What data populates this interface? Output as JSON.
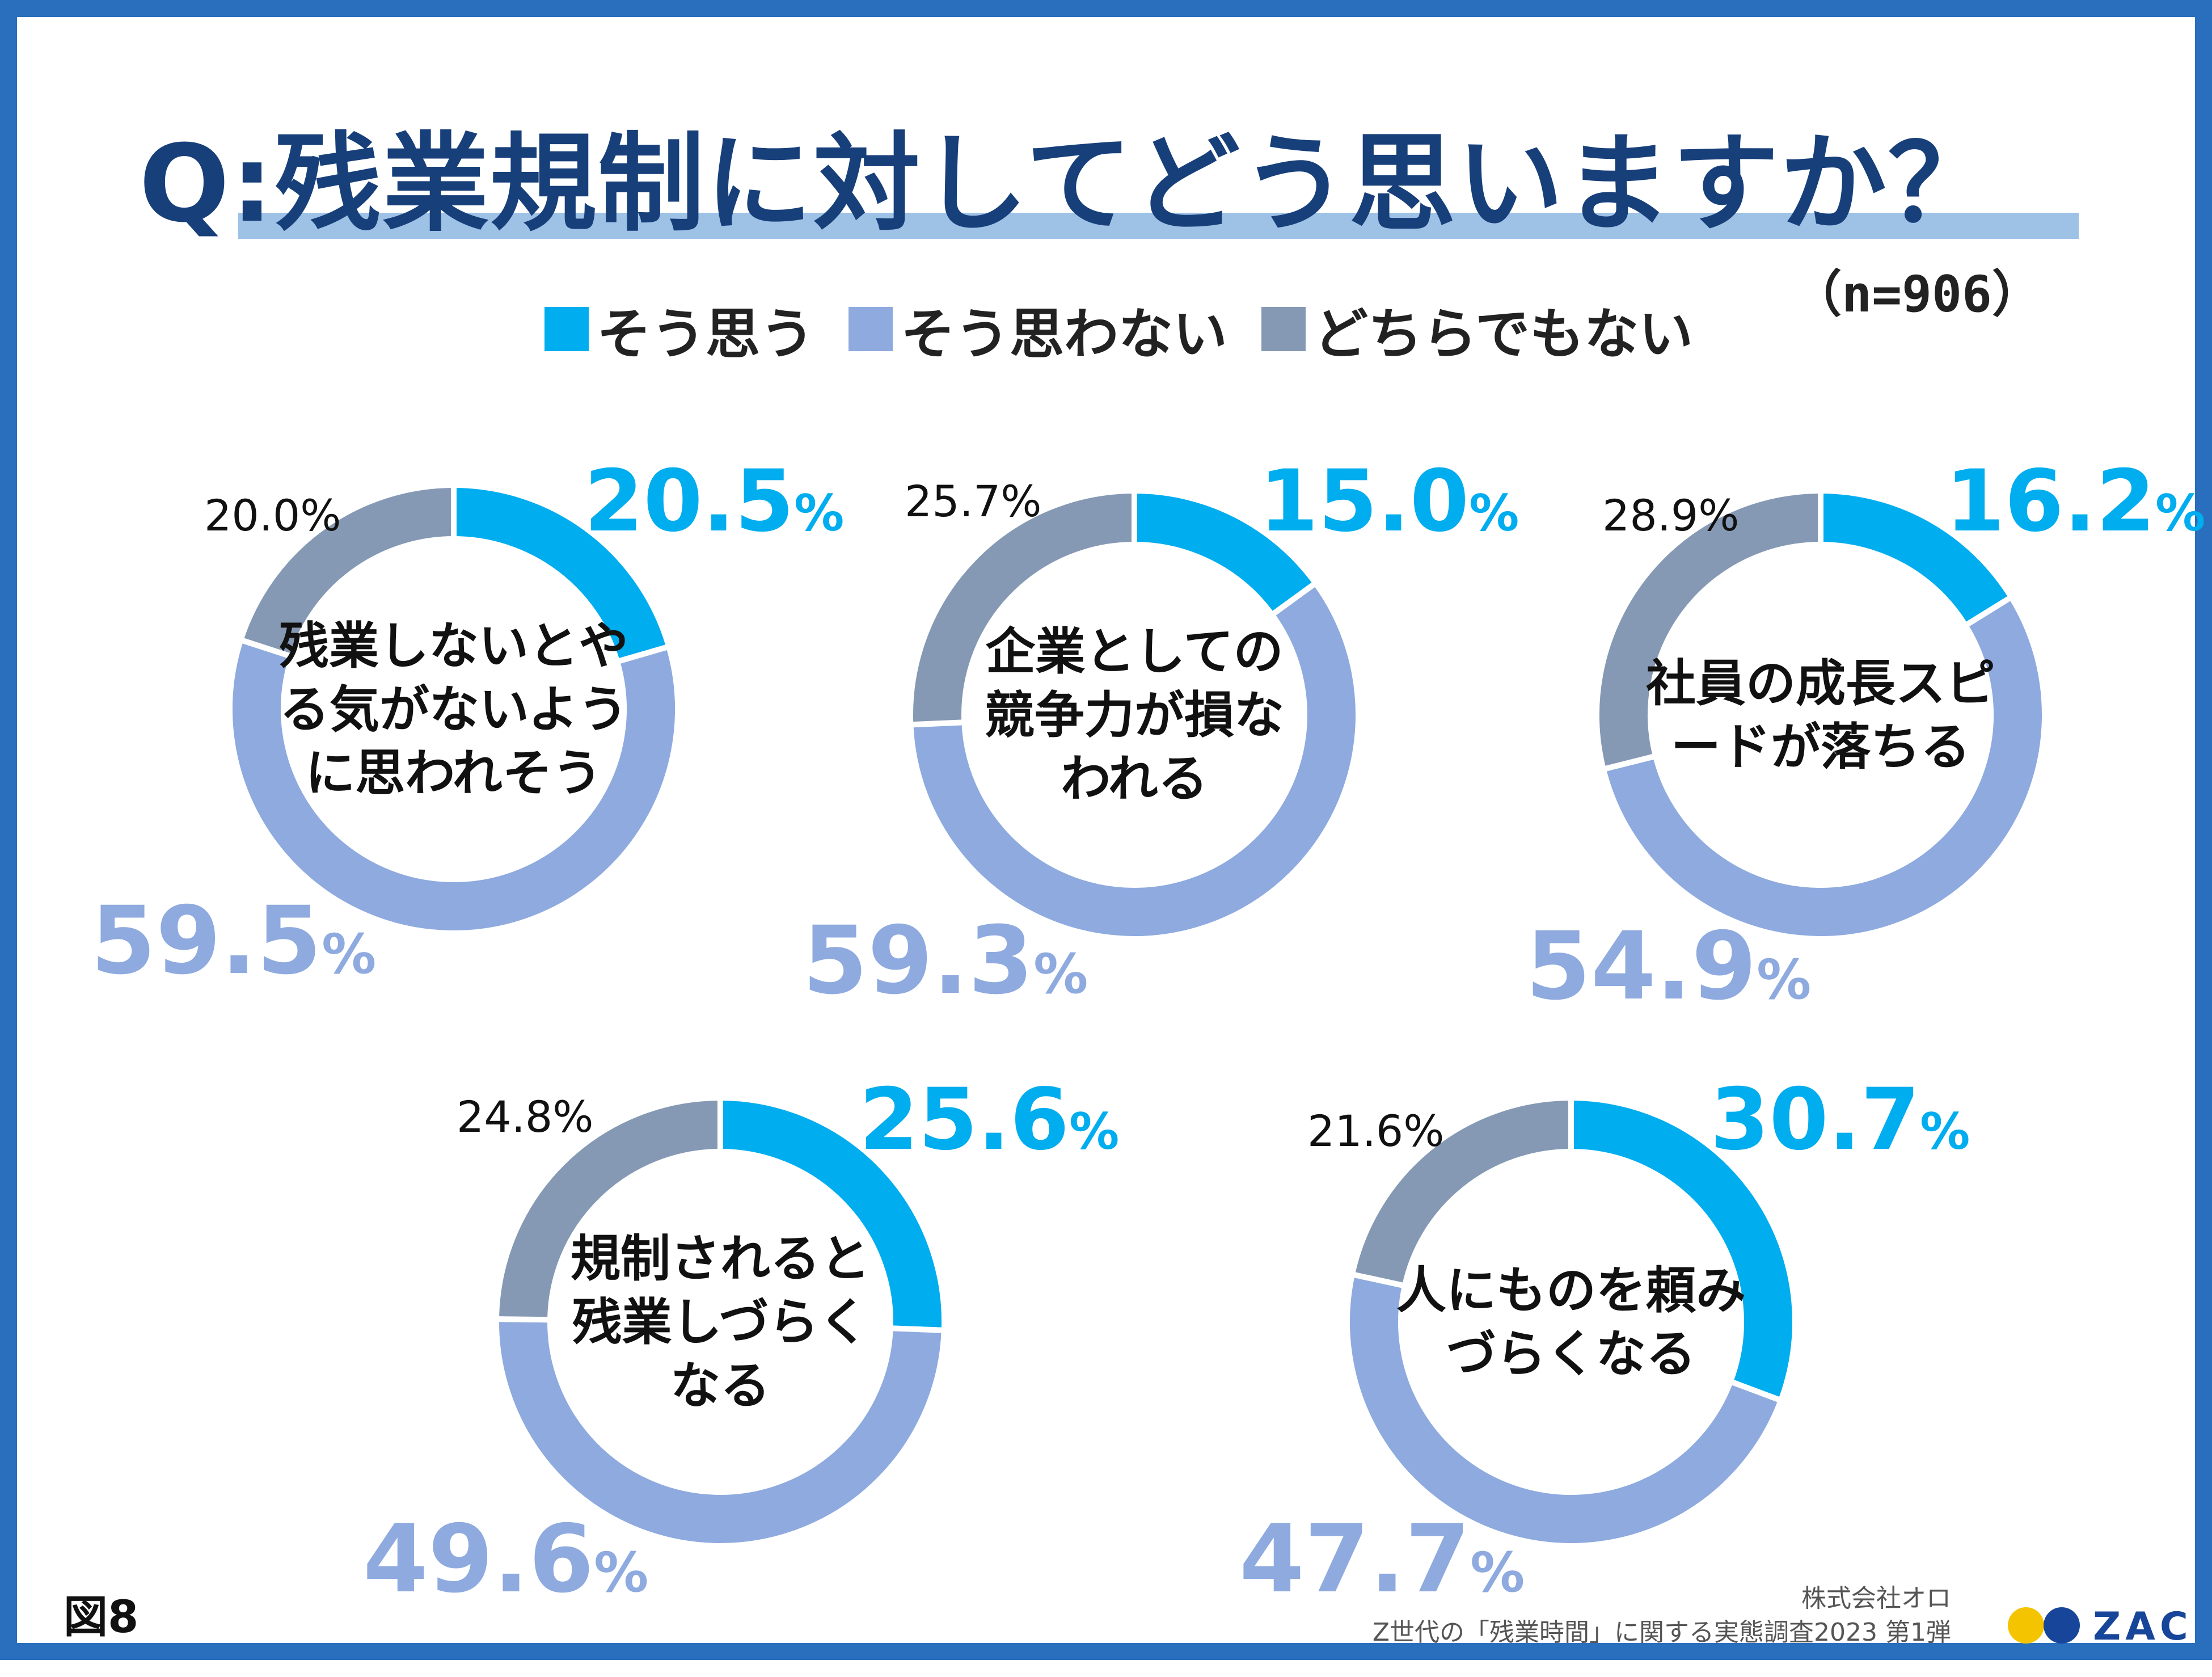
{
  "title": "Q:残業規制に対してどう思いますか？",
  "sample_size": "（n=906）",
  "figure_label": "図8",
  "source": {
    "company": "株式会社オロ",
    "survey": "Z世代の「残業時間」に関する実態調査2023 第1弾"
  },
  "logo": {
    "text": "ZAC",
    "dot_colors": [
      "#f5c400",
      "#17459a"
    ]
  },
  "legend": [
    {
      "label": "そう思う",
      "color": "#00adef"
    },
    {
      "label": "そう思わない",
      "color": "#8eaadf"
    },
    {
      "label": "どちらでもない",
      "color": "#8599b4"
    }
  ],
  "chart_data": {
    "type": "donut",
    "series_names": [
      "そう思う",
      "そう思わない",
      "どちらでもない"
    ],
    "colors": [
      "#00adef",
      "#8eaadf",
      "#8599b4"
    ],
    "charts": [
      {
        "center_label": "残業しないとやる気がないように思われそう",
        "center_lines": [
          "残業しないとや",
          "る気がないよう",
          "に思われそう"
        ],
        "values": [
          20.5,
          59.5,
          20.0
        ]
      },
      {
        "center_label": "企業としての競争力が損なわれる",
        "center_lines": [
          "企業としての",
          "競争力が損な",
          "われる"
        ],
        "values": [
          15.0,
          59.3,
          25.7
        ]
      },
      {
        "center_label": "社員の成長スピードが落ちる",
        "center_lines": [
          "社員の成長スピ",
          "ードが落ちる"
        ],
        "values": [
          16.2,
          54.9,
          28.9
        ]
      },
      {
        "center_label": "規制されると残業しづらくなる",
        "center_lines": [
          "規制されると",
          "残業しづらく",
          "なる"
        ],
        "values": [
          25.6,
          49.6,
          24.8
        ]
      },
      {
        "center_label": "人にものを頼みづらくなる",
        "center_lines": [
          "人にものを頼み",
          "づらくなる"
        ],
        "values": [
          30.7,
          47.7,
          21.6
        ]
      }
    ],
    "value_labels": [
      [
        "20.5",
        "59.5",
        "20.0%"
      ],
      [
        "15.0",
        "59.3",
        "25.7%"
      ],
      [
        "16.2",
        "54.9",
        "28.9%"
      ],
      [
        "25.6",
        "49.6",
        "24.8%"
      ],
      [
        "30.7",
        "47.7",
        "21.6%"
      ]
    ],
    "percent_sign": "%",
    "unit": "%"
  }
}
